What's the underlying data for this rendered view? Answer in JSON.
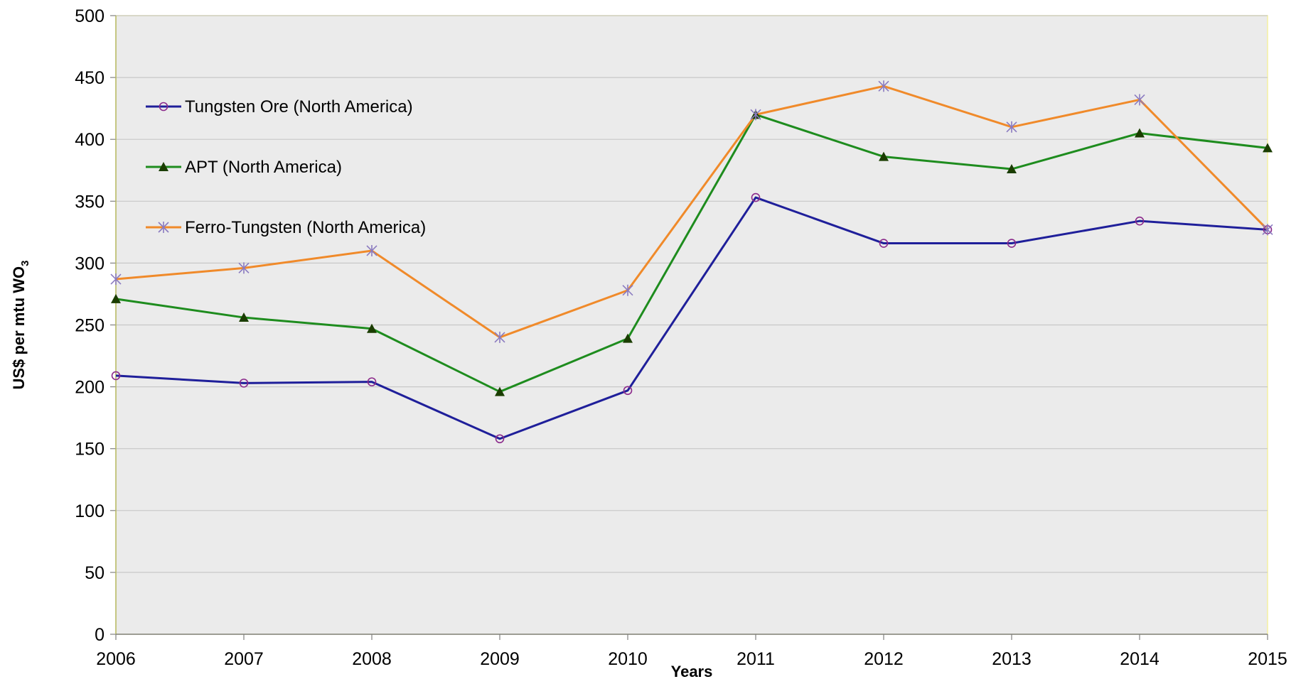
{
  "chart_data": {
    "type": "line",
    "xlabel": "Years",
    "ylabel": {
      "main": "US$ per mtu  WO",
      "subscript": "3"
    },
    "ylim": [
      0,
      500
    ],
    "yticks": [
      0,
      50,
      100,
      150,
      200,
      250,
      300,
      350,
      400,
      450,
      500
    ],
    "categories": [
      "2006",
      "2007",
      "2008",
      "2009",
      "2010",
      "2011",
      "2012",
      "2013",
      "2014",
      "2015"
    ],
    "grid": true,
    "legend_position": "top-left",
    "series": [
      {
        "name": "Tungsten Ore (North America)",
        "color": "#1f1f9a",
        "marker": "circle",
        "marker_color": "#8b2a8b",
        "values": [
          209,
          203,
          204,
          158,
          197,
          353,
          316,
          316,
          334,
          327
        ]
      },
      {
        "name": "APT (North America)",
        "color": "#1e8c1e",
        "marker": "triangle",
        "marker_color": "#1a3d00",
        "values": [
          271,
          256,
          247,
          196,
          239,
          420,
          386,
          376,
          405,
          393
        ]
      },
      {
        "name": "Ferro-Tungsten (North America)",
        "color": "#f08a2a",
        "marker": "asterisk",
        "marker_color": "#8a7ac0",
        "values": [
          287,
          296,
          310,
          240,
          278,
          420,
          443,
          410,
          432,
          327
        ]
      }
    ]
  }
}
